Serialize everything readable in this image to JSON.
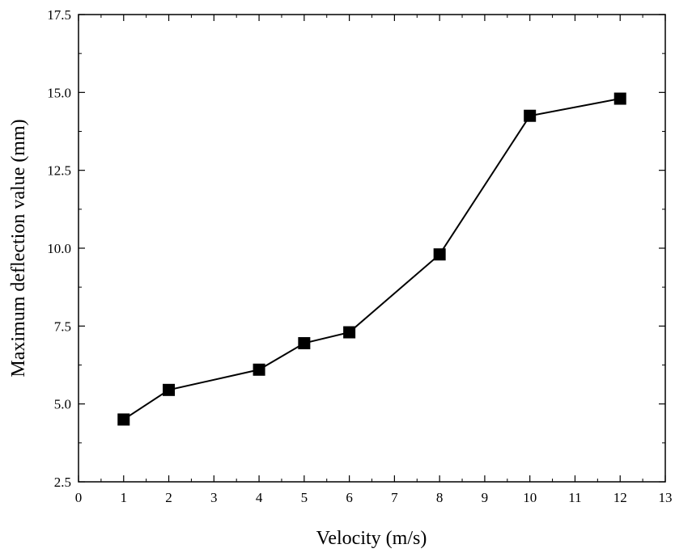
{
  "chart_data": {
    "type": "line",
    "title": "",
    "xlabel": "Velocity (m/s)",
    "ylabel": "Maximum deflection value (mm)",
    "xlim": [
      0,
      13
    ],
    "ylim": [
      2.5,
      17.5
    ],
    "x_ticks": [
      0,
      1,
      2,
      3,
      4,
      5,
      6,
      7,
      8,
      9,
      10,
      11,
      12,
      13
    ],
    "y_ticks": [
      2.5,
      5.0,
      7.5,
      10.0,
      12.5,
      15.0,
      17.5
    ],
    "x_tick_labels": [
      "0",
      "1",
      "2",
      "3",
      "4",
      "5",
      "6",
      "7",
      "8",
      "9",
      "10",
      "11",
      "12",
      "13"
    ],
    "y_tick_labels": [
      "2.5",
      "5.0",
      "7.5",
      "10.0",
      "12.5",
      "15.0",
      "17.5"
    ],
    "grid": false,
    "legend": "none",
    "series": [
      {
        "name": "Maximum deflection",
        "marker": "square",
        "color": "#000000",
        "x": [
          1,
          2,
          4,
          5,
          6,
          8,
          10,
          12
        ],
        "values": [
          4.5,
          5.45,
          6.1,
          6.95,
          7.3,
          9.8,
          14.25,
          14.8
        ]
      }
    ]
  }
}
